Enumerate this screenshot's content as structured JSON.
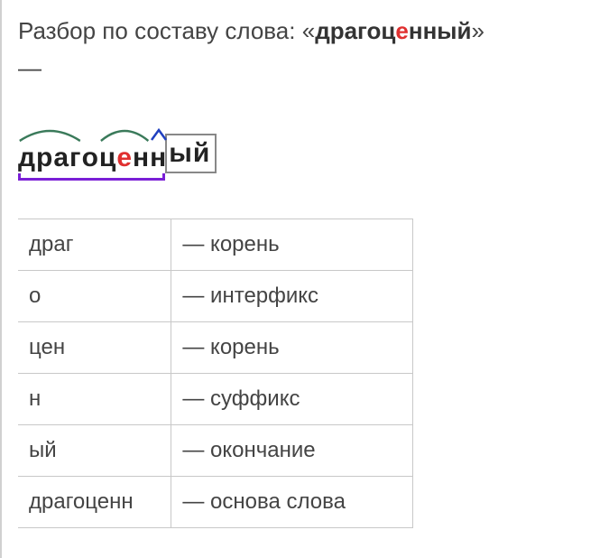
{
  "title_prefix": "Разбор по составу слова: «",
  "word_before_stress": "драгоц",
  "word_stress_letter": "е",
  "word_after_stress": "нный",
  "title_suffix": "»",
  "dash": "—",
  "diagram": {
    "root1": "драг",
    "interfix": "о",
    "root2_before": "ц",
    "root2_stress": "е",
    "root2_after": "н",
    "suffix": "н",
    "ending": "ый",
    "arc_color": "#3a7a5a",
    "caret_color": "#2040c0",
    "bracket_color": "#7a1fd6",
    "box_color": "#888888"
  },
  "table": {
    "rows": [
      {
        "part": "драг",
        "type": "— корень"
      },
      {
        "part": "о",
        "type": "— интерфикс"
      },
      {
        "part": "цен",
        "type": "— корень"
      },
      {
        "part": "н",
        "type": "— суффикс"
      },
      {
        "part": "ый",
        "type": "— окончание"
      },
      {
        "part": "драгоценн",
        "type": "— основа слова"
      }
    ]
  }
}
